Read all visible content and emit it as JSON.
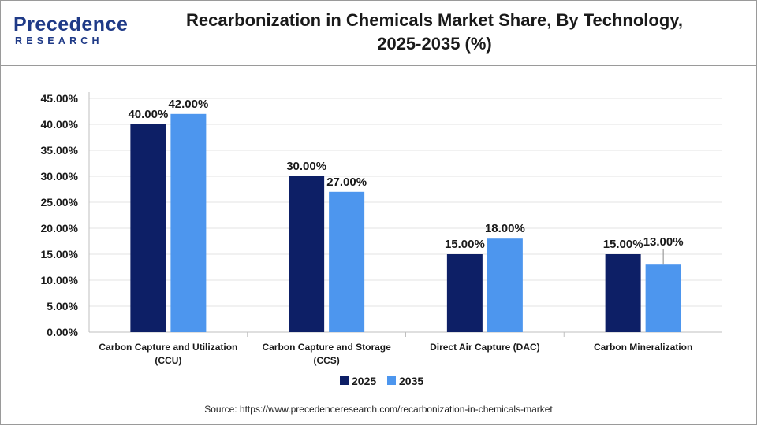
{
  "header": {
    "logo_main": "recedence",
    "logo_initial": "P",
    "logo_sub": "RESEARCH",
    "title_line1": "Recarbonization in Chemicals Market Share, By Technology,",
    "title_line2": "2025-2035 (%)"
  },
  "colors": {
    "series_2025": "#0d1f66",
    "series_2035": "#4d96ee",
    "brand": "#1f3a87"
  },
  "chart_data": {
    "type": "bar",
    "categories": [
      [
        "Carbon Capture and Utilization",
        "(CCU)"
      ],
      [
        "Carbon Capture and Storage",
        "(CCS)"
      ],
      [
        "Direct Air Capture (DAC)"
      ],
      [
        "Carbon Mineralization"
      ]
    ],
    "series": [
      {
        "name": "2025",
        "values": [
          40.0,
          30.0,
          15.0,
          15.0
        ],
        "labels": [
          "40.00%",
          "30.00%",
          "15.00%",
          "15.00%"
        ]
      },
      {
        "name": "2035",
        "values": [
          42.0,
          27.0,
          18.0,
          13.0
        ],
        "labels": [
          "42.00%",
          "27.00%",
          "18.00%",
          "13.00%"
        ]
      }
    ],
    "yticks": [
      "0.00%",
      "5.00%",
      "10.00%",
      "15.00%",
      "20.00%",
      "25.00%",
      "30.00%",
      "35.00%",
      "40.00%",
      "45.00%"
    ],
    "ylim": [
      0,
      45
    ],
    "grid": true,
    "legend": "bottom-center"
  },
  "source": "Source: https://www.precedenceresearch.com/recarbonization-in-chemicals-market"
}
